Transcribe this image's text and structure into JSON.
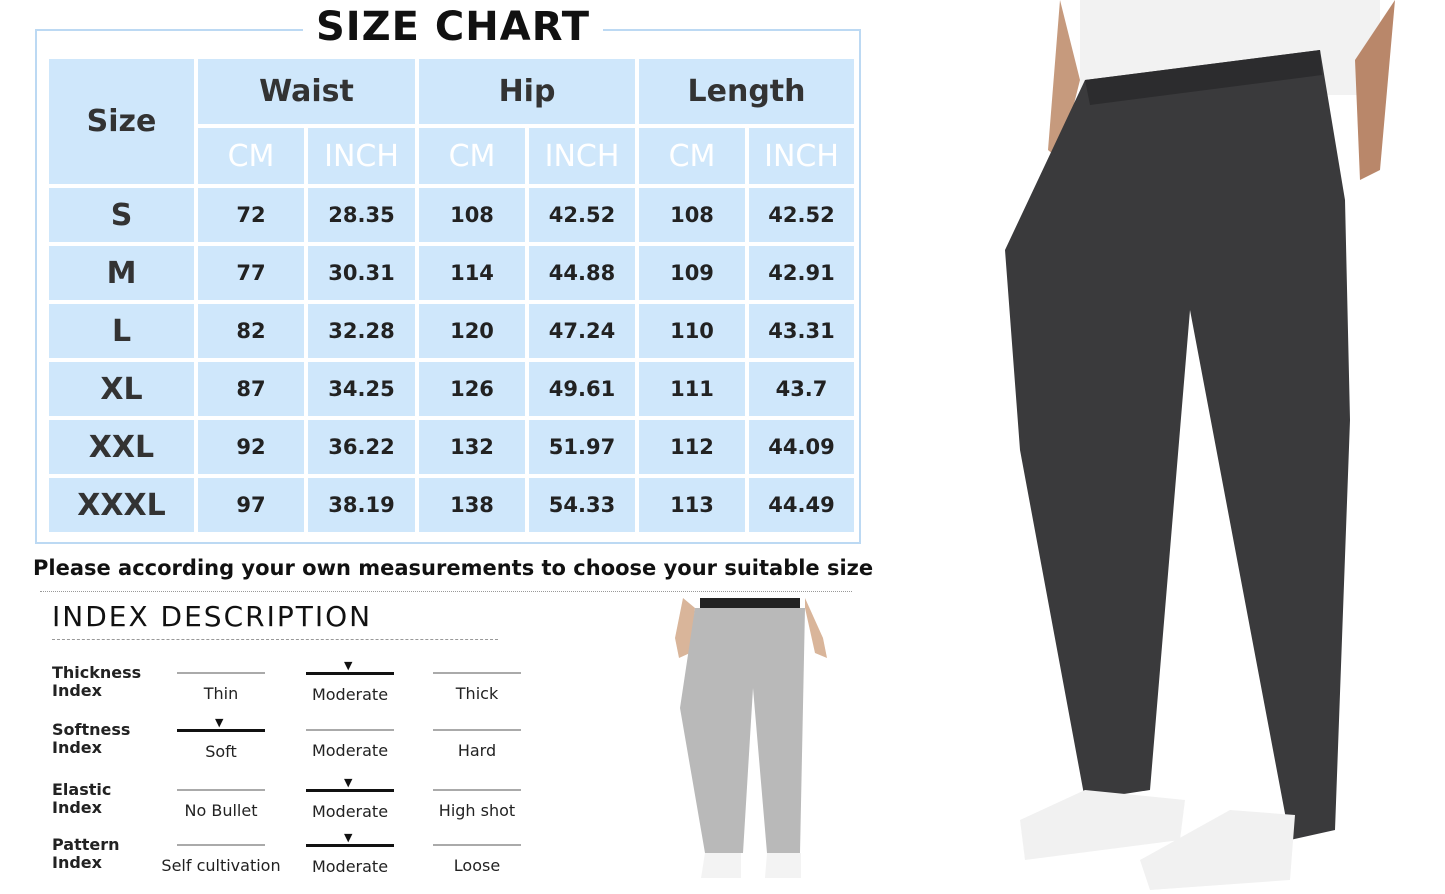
{
  "title": "SIZE CHART",
  "table": {
    "size_header": "Size",
    "groups": [
      "Waist",
      "Hip",
      "Length"
    ],
    "units": [
      "CM",
      "INCH",
      "CM",
      "INCH",
      "CM",
      "INCH"
    ],
    "rows": [
      [
        "S",
        "72",
        "28.35",
        "108",
        "42.52",
        "108",
        "42.52"
      ],
      [
        "M",
        "77",
        "30.31",
        "114",
        "44.88",
        "109",
        "42.91"
      ],
      [
        "L",
        "82",
        "32.28",
        "120",
        "47.24",
        "110",
        "43.31"
      ],
      [
        "XL",
        "87",
        "34.25",
        "126",
        "49.61",
        "111",
        "43.7"
      ],
      [
        "XXL",
        "92",
        "36.22",
        "132",
        "51.97",
        "112",
        "44.09"
      ],
      [
        "XXXL",
        "97",
        "38.19",
        "138",
        "54.33",
        "113",
        "44.49"
      ]
    ]
  },
  "note": "Please according your own measurements to choose your suitable size",
  "index": {
    "title": "INDEX DESCRIPTION",
    "rows": [
      {
        "label": "Thickness Index",
        "options": [
          "Thin",
          "Moderate",
          "Thick"
        ],
        "selected": 1
      },
      {
        "label": "Softness Index",
        "options": [
          "Soft",
          "Moderate",
          "Hard"
        ],
        "selected": 0
      },
      {
        "label": "Elastic Index",
        "options": [
          "No Bullet",
          "Moderate",
          "High shot"
        ],
        "selected": 1
      },
      {
        "label": "Pattern Index",
        "options": [
          "Self cultivation",
          "Moderate",
          "Loose"
        ],
        "selected": 1
      }
    ]
  },
  "colors": {
    "cell": "#cfe7fb",
    "border": "#bcd9f3",
    "pants_dark": "#3a3a3c",
    "pants_light": "#b9b9b9"
  }
}
